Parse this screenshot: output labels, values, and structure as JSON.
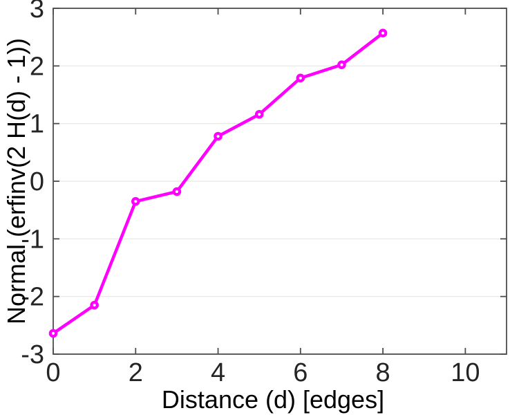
{
  "chart_data": {
    "type": "line",
    "title": "",
    "xlabel": "Distance (d) [edges]",
    "ylabel": "Normal (erfinv(2 H(d) - 1))",
    "x": [
      0,
      1,
      2,
      3,
      4,
      5,
      6,
      7,
      8
    ],
    "y": [
      -2.64,
      -2.15,
      -0.35,
      -0.18,
      0.78,
      1.16,
      1.79,
      2.02,
      2.57
    ],
    "xlim": [
      0,
      11
    ],
    "ylim": [
      -3,
      3
    ],
    "xticks": [
      0,
      2,
      4,
      6,
      8,
      10
    ],
    "yticks": [
      -3,
      -2,
      -1,
      0,
      1,
      2,
      3
    ],
    "grid": {
      "x": false,
      "y": true
    },
    "legend": null,
    "marker": "open-circle",
    "colors": {
      "line": "#FF00FF",
      "marker": "#FF00FF",
      "marker_center": "#FFFFFF",
      "axis": "#4D4D4D",
      "text": "#242424",
      "grid": "#E6E6E6",
      "background": "#FFFFFF"
    }
  }
}
